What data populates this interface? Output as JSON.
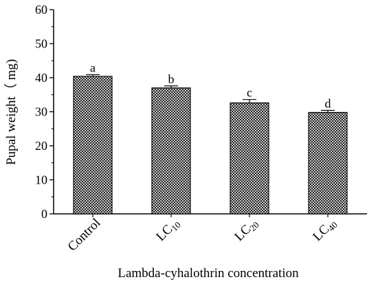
{
  "chart_data": {
    "type": "bar",
    "title": "",
    "xlabel": "Lambda-cyhalothrin concentration",
    "ylabel": "Pupal weight（ mg)",
    "ylim": [
      0,
      60
    ],
    "yticks": [
      0,
      10,
      20,
      30,
      40,
      50,
      60
    ],
    "grid": false,
    "legend": "none",
    "categories": [
      {
        "main": "Control",
        "sub": ""
      },
      {
        "main": "LC",
        "sub": "10"
      },
      {
        "main": "LC",
        "sub": "20"
      },
      {
        "main": "LC",
        "sub": "40"
      }
    ],
    "values": [
      40.4,
      37.0,
      32.6,
      29.8
    ],
    "errors": [
      0.5,
      0.6,
      1.0,
      0.6
    ],
    "significance": [
      "a",
      "b",
      "c",
      "d"
    ],
    "bar_pattern": "crosshatch",
    "bar_color": "#000000"
  }
}
